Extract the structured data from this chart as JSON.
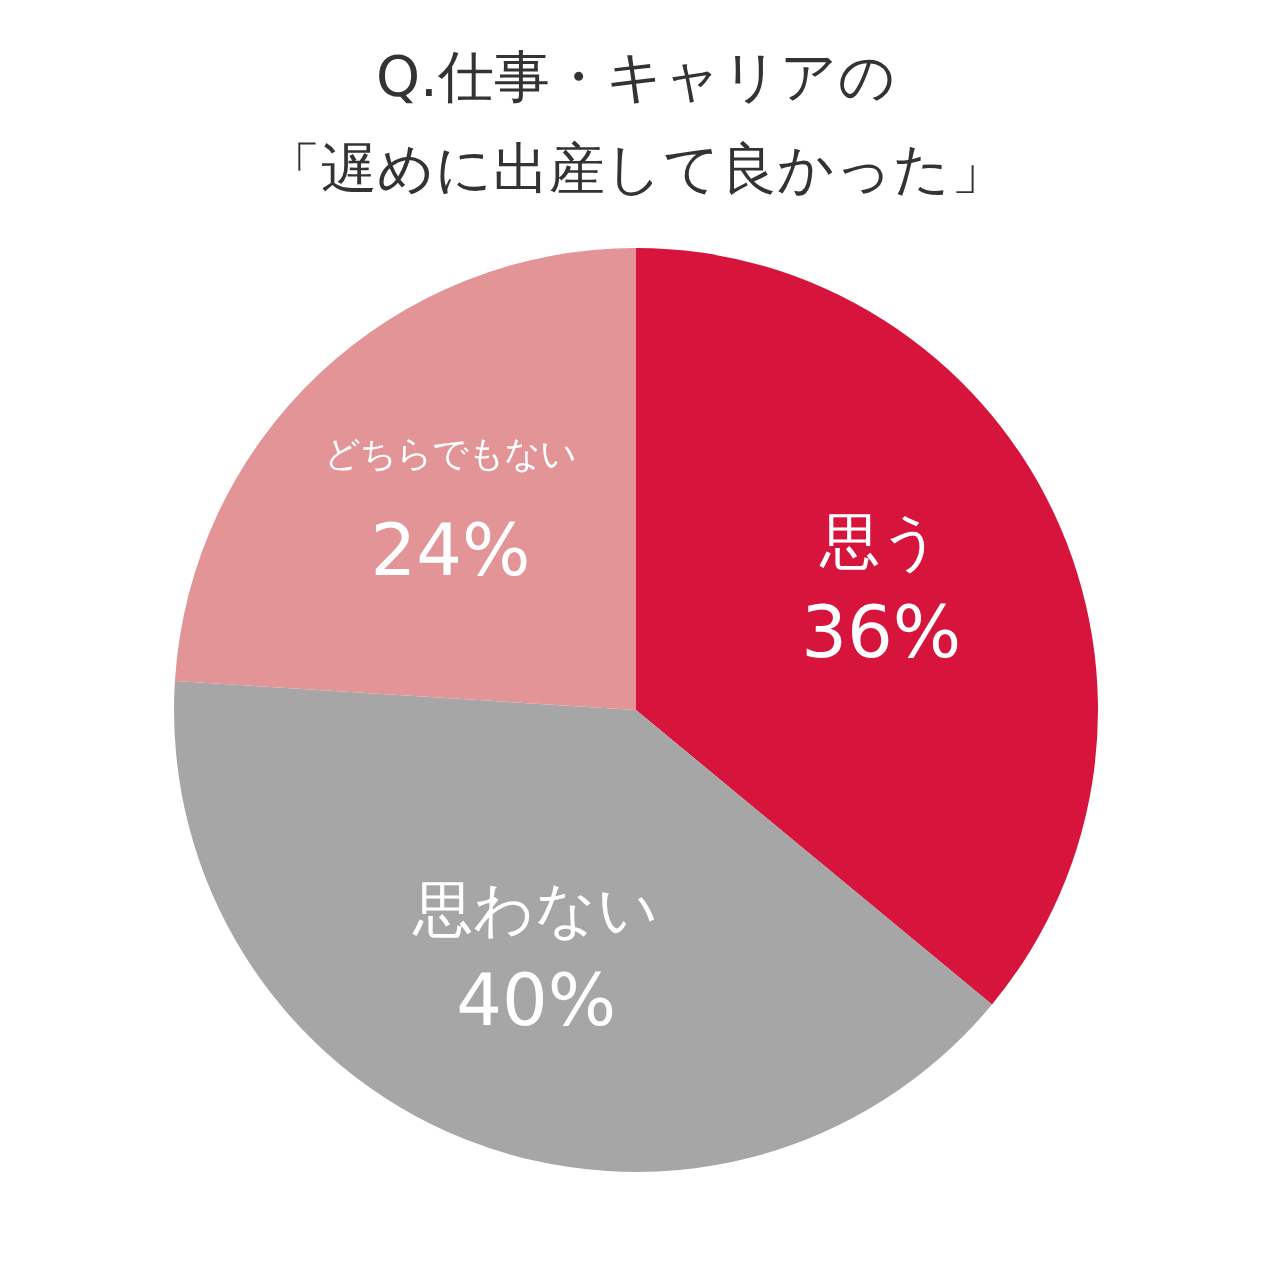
{
  "chart_data": {
    "type": "pie",
    "title": "Q.仕事・キャリアの",
    "subtitle": "「遅めに出産して良かった」",
    "categories": [
      "思う",
      "思わない",
      "どちらでもない"
    ],
    "values": [
      36,
      40,
      24
    ],
    "colors": [
      "#d6143c",
      "#a6a6a6",
      "#e29496"
    ],
    "value_labels": [
      "36%",
      "40%",
      "24%"
    ],
    "legend": false
  }
}
